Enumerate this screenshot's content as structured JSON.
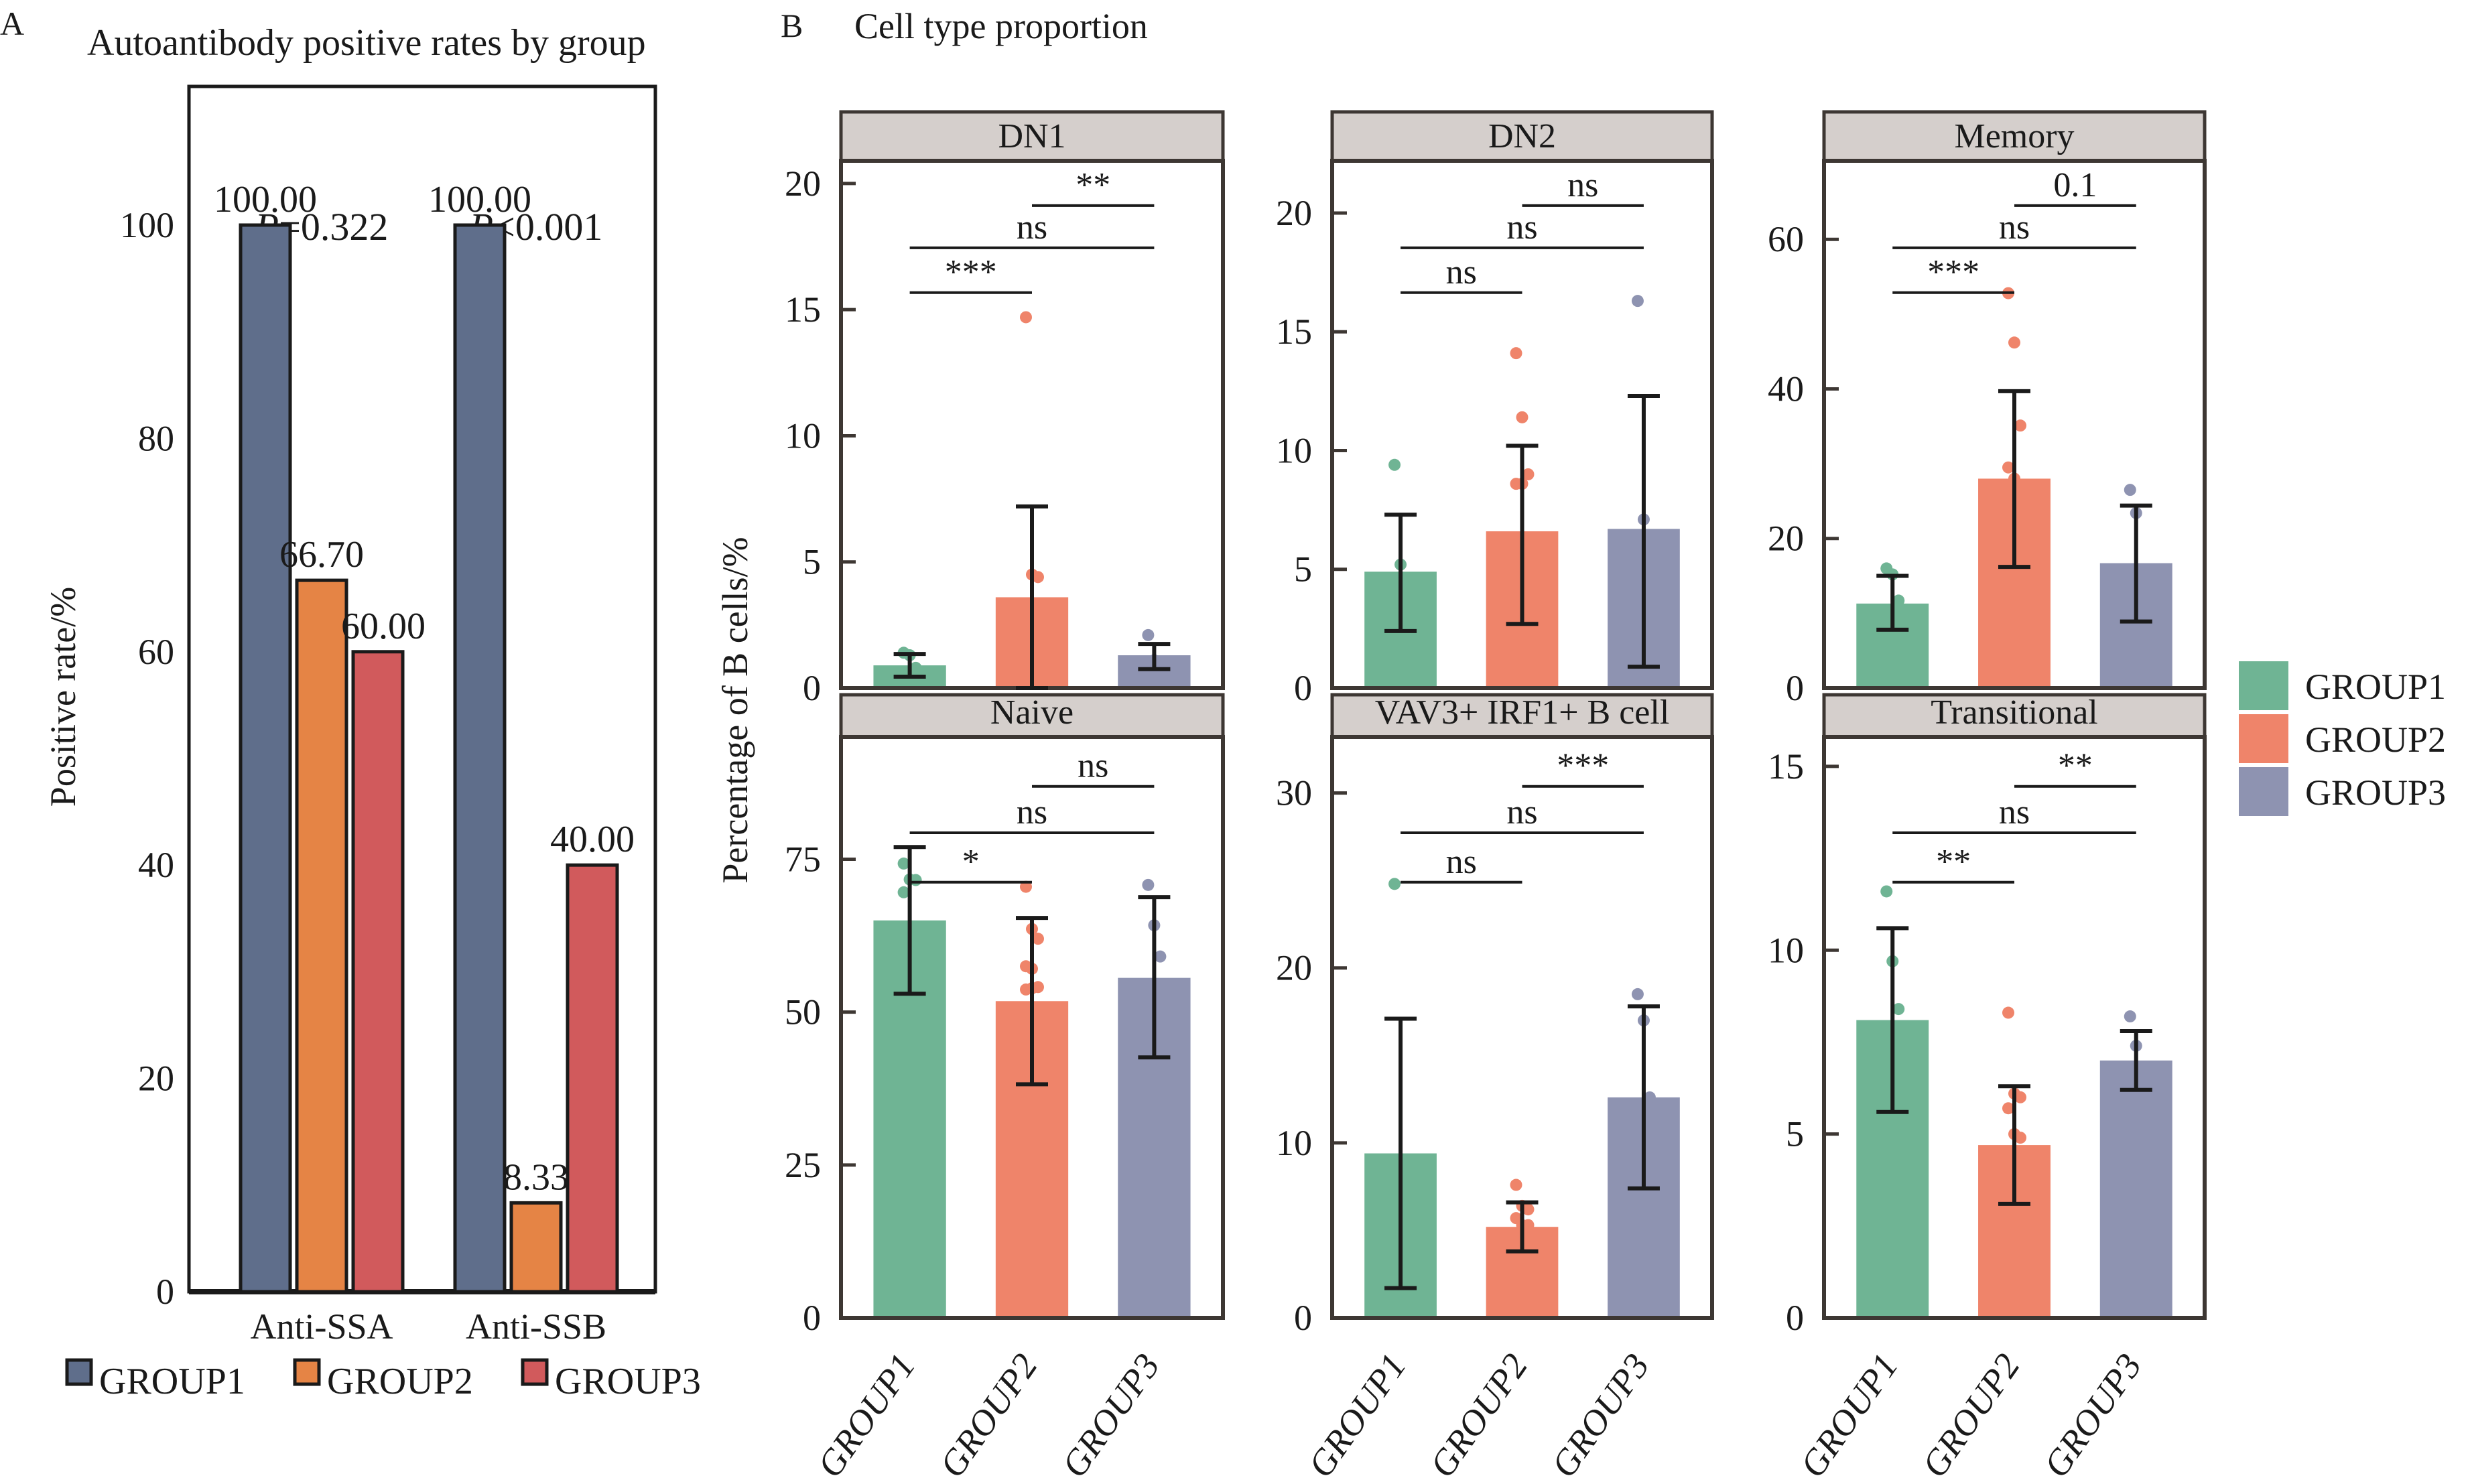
{
  "panel_a": {
    "label": "A",
    "legend": [
      "GROUP1",
      "GROUP2",
      "GROUP3"
    ]
  },
  "panel_b": {
    "label": "B",
    "title": "Cell type proportion",
    "ylabel": "Percentage of B cells/%",
    "legend": [
      "GROUP1",
      "GROUP2",
      "GROUP3"
    ]
  },
  "chart_data": [
    {
      "type": "bar",
      "title": "Autoantibody positive rates by group",
      "xlabel": "",
      "ylabel": "Positive rate/%",
      "categories": [
        "Anti-SSA",
        "Anti-SSB"
      ],
      "series": [
        {
          "name": "GROUP1",
          "color": "#5f6e8b",
          "values": [
            100.0,
            100.0
          ],
          "labels": [
            "100.00",
            "100.00"
          ]
        },
        {
          "name": "GROUP2",
          "color": "#e58445",
          "values": [
            66.7,
            8.33
          ],
          "labels": [
            "66.70",
            "8.33"
          ]
        },
        {
          "name": "GROUP3",
          "color": "#d15a5c",
          "values": [
            60.0,
            40.0
          ],
          "labels": [
            "60.00",
            "40.00"
          ]
        }
      ],
      "pvalues": [
        {
          "prefix": "P",
          "text": "=0.322"
        },
        {
          "prefix": "P",
          "text": "<0.001"
        }
      ],
      "ylim": [
        0,
        113
      ],
      "yticks": [
        0,
        20,
        40,
        60,
        80,
        100
      ],
      "legend_position": "bottom",
      "grid": false
    },
    {
      "type": "bar",
      "title": "Cell type proportion",
      "ylabel": "Percentage of B cells/%",
      "categories": [
        "GROUP1",
        "GROUP2",
        "GROUP3"
      ],
      "colors": {
        "GROUP1": "#6fb494",
        "GROUP2": "#ef846a",
        "GROUP3": "#8e93b1"
      },
      "legend_position": "right",
      "grid": false,
      "facets": [
        {
          "name": "DN1",
          "ylim": [
            0,
            20.9
          ],
          "yticks": [
            0,
            5,
            10,
            15,
            20
          ],
          "means": [
            0.9,
            3.6,
            1.3
          ],
          "error_bars": [
            [
              0.45,
              1.35
            ],
            [
              0,
              7.2
            ],
            [
              0.75,
              1.75
            ]
          ],
          "points": [
            [
              1.4,
              1.3,
              0.8
            ],
            [
              14.7,
              4.5,
              4.4
            ],
            [
              2.1,
              1.1
            ]
          ],
          "comparisons": [
            {
              "pair": [
                "GROUP1",
                "GROUP2"
              ],
              "label": "***"
            },
            {
              "pair": [
                "GROUP1",
                "GROUP3"
              ],
              "label": "ns"
            },
            {
              "pair": [
                "GROUP2",
                "GROUP3"
              ],
              "label": "**"
            }
          ]
        },
        {
          "name": "DN2",
          "ylim": [
            0,
            22.2
          ],
          "yticks": [
            0,
            5,
            10,
            15,
            20
          ],
          "means": [
            4.9,
            6.6,
            6.7
          ],
          "error_bars": [
            [
              2.4,
              7.3
            ],
            [
              2.7,
              10.2
            ],
            [
              0.9,
              12.3
            ]
          ],
          "points": [
            [
              9.4,
              5.2
            ],
            [
              14.1,
              11.4,
              9.0,
              8.6,
              8.6
            ],
            [
              16.3,
              7.1
            ]
          ],
          "comparisons": [
            {
              "pair": [
                "GROUP1",
                "GROUP2"
              ],
              "label": "ns"
            },
            {
              "pair": [
                "GROUP1",
                "GROUP3"
              ],
              "label": "ns"
            },
            {
              "pair": [
                "GROUP2",
                "GROUP3"
              ],
              "label": "ns"
            }
          ]
        },
        {
          "name": "Memory",
          "ylim": [
            0,
            70.5
          ],
          "yticks": [
            0,
            20,
            40,
            60
          ],
          "means": [
            11.3,
            28.0,
            16.7
          ],
          "error_bars": [
            [
              7.8,
              15.0
            ],
            [
              16.2,
              39.7
            ],
            [
              8.9,
              24.4
            ]
          ],
          "points": [
            [
              16.0,
              15.2,
              11.7
            ],
            [
              52.8,
              46.2,
              35.1,
              29.5,
              28.0
            ],
            [
              26.5,
              23.4
            ]
          ],
          "comparisons": [
            {
              "pair": [
                "GROUP1",
                "GROUP2"
              ],
              "label": "***"
            },
            {
              "pair": [
                "GROUP1",
                "GROUP3"
              ],
              "label": "ns"
            },
            {
              "pair": [
                "GROUP2",
                "GROUP3"
              ],
              "label": "0.1"
            }
          ]
        },
        {
          "name": "Naive",
          "ylim": [
            0,
            95
          ],
          "yticks": [
            0,
            25,
            50,
            75
          ],
          "means": [
            65.0,
            51.8,
            55.6
          ],
          "error_bars": [
            [
              53.0,
              77.0
            ],
            [
              38.2,
              65.4
            ],
            [
              42.6,
              68.8
            ]
          ],
          "points": [
            [
              74.3,
              71.7,
              71.6,
              69.6
            ],
            [
              70.5,
              63.6,
              62.0,
              57.5,
              57.1,
              54.1,
              53.7,
              53.9
            ],
            [
              70.8,
              64.2,
              59.1
            ]
          ],
          "comparisons": [
            {
              "pair": [
                "GROUP1",
                "GROUP2"
              ],
              "label": "*"
            },
            {
              "pair": [
                "GROUP1",
                "GROUP3"
              ],
              "label": "ns"
            },
            {
              "pair": [
                "GROUP2",
                "GROUP3"
              ],
              "label": "ns"
            }
          ]
        },
        {
          "name": "VAV3+ IRF1+ B cell",
          "ylim": [
            0,
            33.2
          ],
          "yticks": [
            0,
            10,
            20,
            30
          ],
          "means": [
            9.4,
            5.2,
            12.6
          ],
          "error_bars": [
            [
              1.7,
              17.1
            ],
            [
              3.8,
              6.6
            ],
            [
              7.4,
              17.8
            ]
          ],
          "points": [
            [
              24.8
            ],
            [
              7.6,
              6.4,
              6.2,
              5.7,
              5.3,
              5.3
            ],
            [
              18.5,
              17.0,
              12.6
            ]
          ],
          "comparisons": [
            {
              "pair": [
                "GROUP1",
                "GROUP2"
              ],
              "label": "ns"
            },
            {
              "pair": [
                "GROUP1",
                "GROUP3"
              ],
              "label": "ns"
            },
            {
              "pair": [
                "GROUP2",
                "GROUP3"
              ],
              "label": "***"
            }
          ]
        },
        {
          "name": "Transitional",
          "ylim": [
            0,
            15.8
          ],
          "yticks": [
            0,
            5,
            10,
            15
          ],
          "means": [
            8.1,
            4.7,
            7.0
          ],
          "error_bars": [
            [
              5.6,
              10.6
            ],
            [
              3.1,
              6.3
            ],
            [
              6.2,
              7.8
            ]
          ],
          "points": [
            [
              11.6,
              9.7,
              8.4
            ],
            [
              8.3,
              6.1,
              6.0,
              5.7,
              5.0,
              4.9
            ],
            [
              8.2,
              7.4
            ]
          ],
          "comparisons": [
            {
              "pair": [
                "GROUP1",
                "GROUP2"
              ],
              "label": "**"
            },
            {
              "pair": [
                "GROUP1",
                "GROUP3"
              ],
              "label": "ns"
            },
            {
              "pair": [
                "GROUP2",
                "GROUP3"
              ],
              "label": "**"
            }
          ]
        }
      ]
    }
  ]
}
